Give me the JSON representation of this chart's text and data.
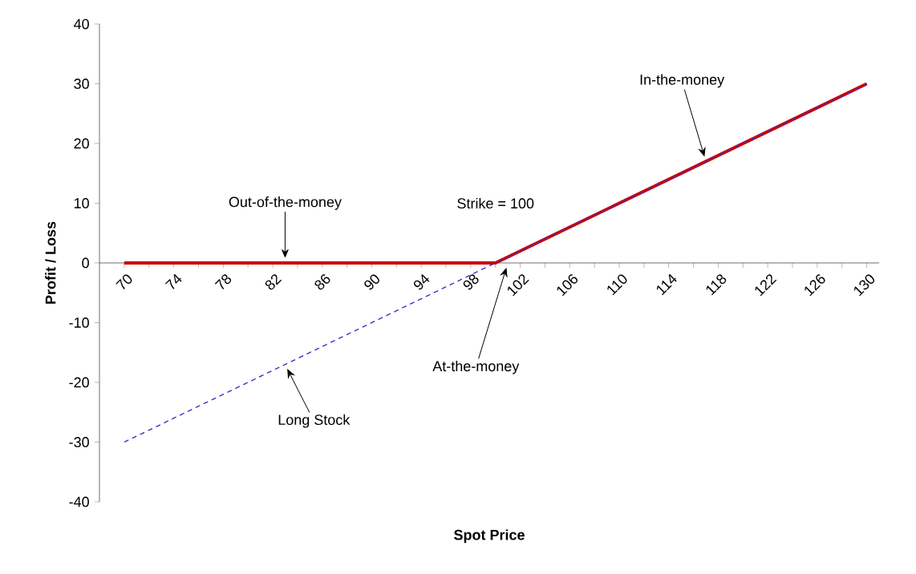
{
  "chart_data": {
    "type": "line",
    "xlabel": "Spot Price",
    "ylabel": "Profit / Loss",
    "series": [
      {
        "color": "#cc0000",
        "line_style": "solid",
        "x": [
          70,
          100,
          130
        ],
        "values": [
          0,
          0,
          30
        ]
      },
      {
        "color": "#3333cc",
        "line_style": "dashed",
        "x": [
          70,
          100,
          130
        ],
        "values": [
          -30,
          0,
          30
        ]
      }
    ],
    "xlim": [
      68,
      131
    ],
    "ylim": [
      -40,
      40
    ],
    "xticks": [
      70,
      {
        "value": 72,
        "label": null
      },
      74,
      {
        "value": 76,
        "label": null
      },
      78,
      {
        "value": 80,
        "label": null
      },
      82,
      {
        "value": 84,
        "label": null
      },
      86,
      {
        "value": 88,
        "label": null
      },
      90,
      {
        "value": 92,
        "label": null
      },
      94,
      {
        "value": 96,
        "label": null
      },
      98,
      {
        "value": 100,
        "label": null
      },
      102,
      {
        "value": 104,
        "label": null
      },
      106,
      {
        "value": 108,
        "label": null
      },
      110,
      {
        "value": 112,
        "label": null
      },
      114,
      {
        "value": 116,
        "label": null
      },
      118,
      {
        "value": 120,
        "label": null
      },
      122,
      {
        "value": 124,
        "label": null
      },
      126,
      {
        "value": 128,
        "label": null
      },
      130
    ],
    "yticks": [
      -40,
      -30,
      -20,
      -10,
      0,
      10,
      20,
      30,
      40
    ],
    "grid": false,
    "marker": "none",
    "annotations": [
      {
        "text": "Out-of-the-money",
        "x": 83,
        "y": 0
      },
      {
        "text": "In-the-money",
        "x": 117,
        "y": 17
      },
      "Strike = 100",
      {
        "text": "At-the-money",
        "x": 101,
        "y": 0
      },
      {
        "text": "Long Stock",
        "x": 83,
        "y": -17
      }
    ]
  }
}
